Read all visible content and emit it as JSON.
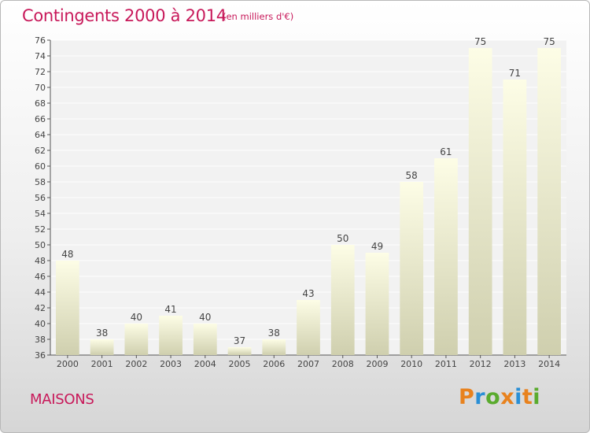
{
  "title": "Contingents 2000 à 2014",
  "subtitle": "(en milliers d'€)",
  "category_label": "MAISONS",
  "logo": {
    "text": "Proxiti",
    "letter_colors": [
      "#e8821e",
      "#2a8fd6",
      "#5aab2e",
      "#e8821e",
      "#2a8fd6",
      "#e8821e",
      "#5aab2e"
    ]
  },
  "colors": {
    "title": "#c8195a",
    "bar_top": "#fdfde6",
    "bar_bottom": "#cfcfae",
    "plot_background": "#f2f2f2",
    "grid": "#ffffff",
    "text": "#444444"
  },
  "chart_data": {
    "type": "bar",
    "title": "Contingents 2000 à 2014",
    "subtitle": "(en milliers d'€)",
    "categories": [
      "2000",
      "2001",
      "2002",
      "2003",
      "2004",
      "2005",
      "2006",
      "2007",
      "2008",
      "2009",
      "2010",
      "2011",
      "2012",
      "2013",
      "2014"
    ],
    "values": [
      48,
      38,
      40,
      41,
      40,
      37,
      38,
      43,
      50,
      49,
      58,
      61,
      75,
      71,
      75
    ],
    "xlabel": "",
    "ylabel": "",
    "ylim": [
      36,
      76
    ],
    "ytick_step": 2,
    "data_labels": true,
    "grid": true
  }
}
